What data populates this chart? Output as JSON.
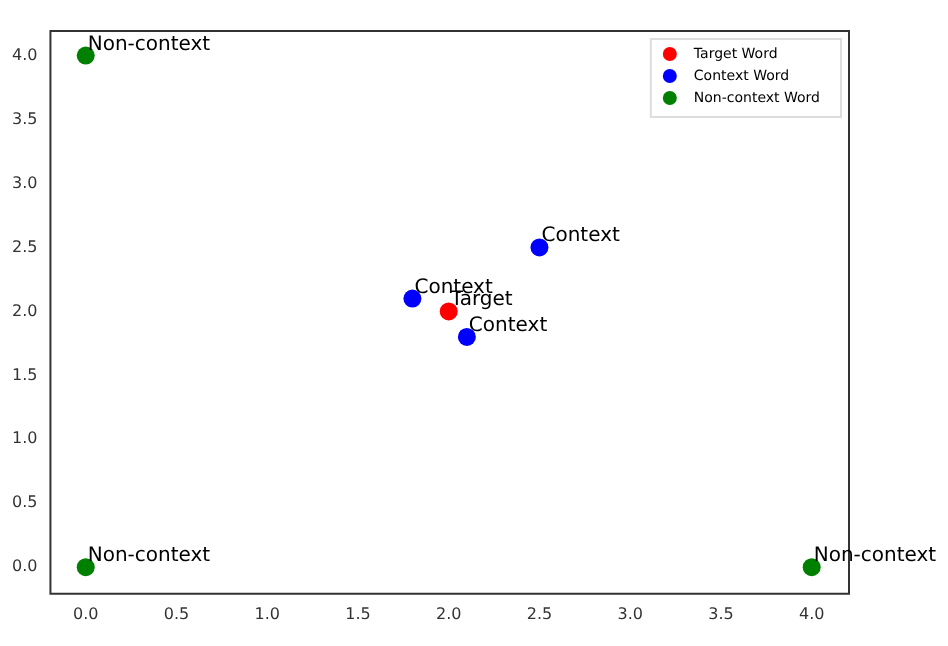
{
  "chart_data": {
    "type": "scatter",
    "xlim": [
      -0.2,
      4.2
    ],
    "ylim": [
      -0.2,
      4.2
    ],
    "xticks": [
      {
        "value": 0,
        "label": "0.0"
      },
      {
        "value": 0.5,
        "label": "0.5"
      },
      {
        "value": 1,
        "label": "1.0"
      },
      {
        "value": 1.5,
        "label": "1.5"
      },
      {
        "value": 2,
        "label": "2.0"
      },
      {
        "value": 2.5,
        "label": "2.5"
      },
      {
        "value": 3,
        "label": "3.0"
      },
      {
        "value": 3.5,
        "label": "3.5"
      },
      {
        "value": 4,
        "label": "4.0"
      }
    ],
    "yticks": [
      {
        "value": 0,
        "label": "0.0"
      },
      {
        "value": 0.5,
        "label": "0.5"
      },
      {
        "value": 1,
        "label": "1.0"
      },
      {
        "value": 1.5,
        "label": "1.5"
      },
      {
        "value": 2,
        "label": "2.0"
      },
      {
        "value": 2.5,
        "label": "2.5"
      },
      {
        "value": 3,
        "label": "3.0"
      },
      {
        "value": 3.5,
        "label": "3.5"
      },
      {
        "value": 4,
        "label": "4.0"
      }
    ],
    "series": [
      {
        "name": "Target Word",
        "color": "#ff0000",
        "x": [
          2
        ],
        "values": [
          2
        ]
      },
      {
        "name": "Context Word",
        "color": "#0000ff",
        "x": [
          1.8,
          2.1,
          2.5
        ],
        "values": [
          2.1,
          1.8,
          2.5
        ]
      },
      {
        "name": "Non-context Word",
        "color": "#008000",
        "x": [
          0,
          0,
          4
        ],
        "values": [
          4,
          0,
          0
        ]
      }
    ],
    "annotations": [
      {
        "text": "Target",
        "x": 2,
        "y": 2
      },
      {
        "text": "Context",
        "x": 1.8,
        "y": 2.1
      },
      {
        "text": "Context",
        "x": 2.1,
        "y": 1.8
      },
      {
        "text": "Context",
        "x": 2.5,
        "y": 2.5
      },
      {
        "text": "Non-context",
        "x": 0,
        "y": 4
      },
      {
        "text": "Non-context",
        "x": 0,
        "y": 0
      },
      {
        "text": "Non-context",
        "x": 4,
        "y": 0
      }
    ],
    "marker": "circle",
    "grid": false,
    "legend": "top right"
  }
}
